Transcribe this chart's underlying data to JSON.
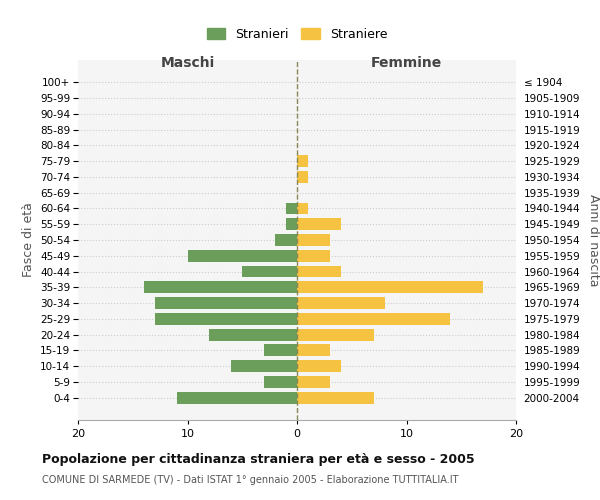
{
  "age_groups": [
    "0-4",
    "5-9",
    "10-14",
    "15-19",
    "20-24",
    "25-29",
    "30-34",
    "35-39",
    "40-44",
    "45-49",
    "50-54",
    "55-59",
    "60-64",
    "65-69",
    "70-74",
    "75-79",
    "80-84",
    "85-89",
    "90-94",
    "95-99",
    "100+"
  ],
  "birth_years": [
    "2000-2004",
    "1995-1999",
    "1990-1994",
    "1985-1989",
    "1980-1984",
    "1975-1979",
    "1970-1974",
    "1965-1969",
    "1960-1964",
    "1955-1959",
    "1950-1954",
    "1945-1949",
    "1940-1944",
    "1935-1939",
    "1930-1934",
    "1925-1929",
    "1920-1924",
    "1915-1919",
    "1910-1914",
    "1905-1909",
    "≤ 1904"
  ],
  "maschi": [
    11,
    3,
    6,
    3,
    8,
    13,
    13,
    14,
    5,
    10,
    2,
    1,
    1,
    0,
    0,
    0,
    0,
    0,
    0,
    0,
    0
  ],
  "femmine": [
    7,
    3,
    4,
    3,
    7,
    14,
    8,
    17,
    4,
    3,
    3,
    4,
    1,
    0,
    1,
    1,
    0,
    0,
    0,
    0,
    0
  ],
  "color_maschi": "#6a9e5a",
  "color_femmine": "#f5c242",
  "xlim": 20,
  "title": "Popolazione per cittadinanza straniera per età e sesso - 2005",
  "subtitle": "COMUNE DI SARMEDE (TV) - Dati ISTAT 1° gennaio 2005 - Elaborazione TUTTITALIA.IT",
  "label_maschi": "Stranieri",
  "label_femmine": "Straniere",
  "xlabel_left": "Maschi",
  "xlabel_right": "Femmine",
  "ylabel_left": "Fasce di età",
  "ylabel_right": "Anni di nascita",
  "bg_color": "#f5f5f5",
  "grid_color": "#cccccc"
}
